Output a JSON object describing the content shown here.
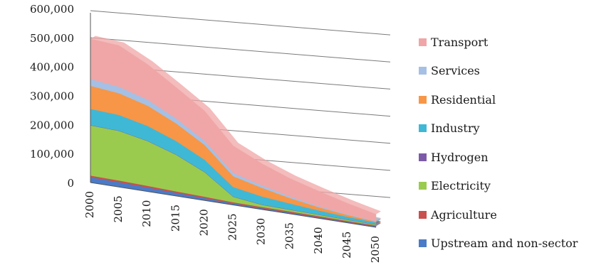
{
  "chart_data": {
    "type": "area",
    "stacked": true,
    "three_d": true,
    "x": [
      2000,
      2005,
      2010,
      2015,
      2020,
      2025,
      2030,
      2035,
      2040,
      2045,
      2050
    ],
    "x_tick_labels": [
      "2000",
      "2005",
      "2010",
      "2015",
      "2020",
      "2025",
      "2030",
      "2035",
      "2040",
      "2045",
      "2050"
    ],
    "y_tick_labels": [
      "0",
      "100,000",
      "200,000",
      "300,000",
      "400,000",
      "500,000",
      "600,000"
    ],
    "y_ticks": [
      0,
      100000,
      200000,
      300000,
      400000,
      500000,
      600000
    ],
    "ylim": [
      0,
      600000
    ],
    "grid": true,
    "legend_position": "right",
    "series": [
      {
        "name": "Upstream and non-sector",
        "color": "#4a7bc8",
        "values": [
          20000,
          18000,
          15000,
          12000,
          9000,
          6000,
          5000,
          5000,
          4000,
          4000,
          4000
        ]
      },
      {
        "name": "Agriculture",
        "color": "#c9504c",
        "values": [
          6000,
          6000,
          6000,
          5000,
          5000,
          4000,
          4000,
          4000,
          4000,
          3000,
          3000
        ]
      },
      {
        "name": "Electricity",
        "color": "#9acb4e",
        "values": [
          185000,
          183000,
          165000,
          135000,
          90000,
          20000,
          8000,
          6000,
          5000,
          4000,
          3000
        ]
      },
      {
        "name": "Hydrogen",
        "color": "#7d5aa8",
        "values": [
          1000,
          1000,
          1000,
          1000,
          1000,
          1000,
          1000,
          1000,
          1000,
          1000,
          1000
        ]
      },
      {
        "name": "Industry",
        "color": "#3fb8d6",
        "values": [
          60000,
          58000,
          55000,
          50000,
          45000,
          35000,
          30000,
          22000,
          15000,
          10000,
          7000
        ]
      },
      {
        "name": "Residential",
        "color": "#f79646",
        "values": [
          85000,
          80000,
          75000,
          65000,
          55000,
          40000,
          32000,
          20000,
          12000,
          7000,
          3000
        ]
      },
      {
        "name": "Services",
        "color": "#a5c0e4",
        "values": [
          25000,
          24000,
          22000,
          18000,
          15000,
          12000,
          9000,
          6000,
          4000,
          3000,
          2000
        ]
      },
      {
        "name": "Transport",
        "color": "#f0a6a6",
        "values": [
          148000,
          152000,
          130000,
          115000,
          110000,
          100000,
          80000,
          66000,
          55000,
          40000,
          25000
        ]
      }
    ],
    "legend_order": [
      "Transport",
      "Services",
      "Residential",
      "Industry",
      "Hydrogen",
      "Electricity",
      "Agriculture",
      "Upstream and non-sector"
    ]
  }
}
